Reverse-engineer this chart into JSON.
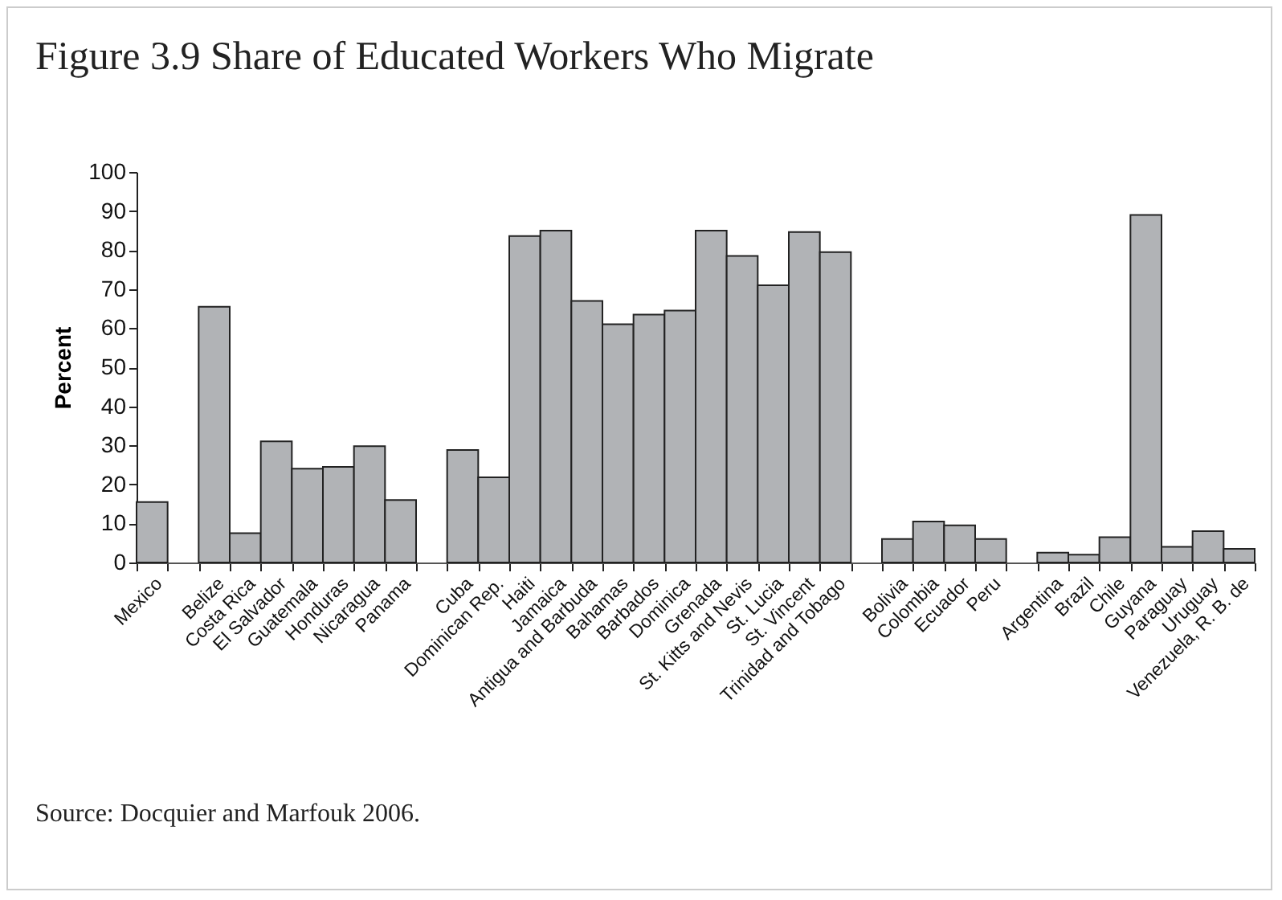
{
  "chart_data": {
    "type": "bar",
    "title": "Figure 3.9 Share of Educated Workers Who Migrate",
    "ylabel": "Percent",
    "categories": [
      "Mexico",
      null,
      "Belize",
      "Costa Rica",
      "El Salvador",
      "Guatemala",
      "Honduras",
      "Nicaragua",
      "Panama",
      null,
      "Cuba",
      "Dominican Rep.",
      "Haiti",
      "Jamaica",
      "Antigua and Barbuda",
      "Bahamas",
      "Barbados",
      "Dominica",
      "Grenada",
      "St. Kitts and Nevis",
      "St. Lucia",
      "St. Vincent",
      "Trinidad and Tobago",
      null,
      "Bolivia",
      "Colombia",
      "Ecuador",
      "Peru",
      null,
      "Argentina",
      "Brazil",
      "Chile",
      "Guyana",
      "Paraguay",
      "Uruguay",
      "Venezuela, R. B. de"
    ],
    "values": [
      15.5,
      null,
      65.5,
      7.5,
      31,
      24,
      24.5,
      29.8,
      16,
      null,
      28.8,
      21.8,
      83.6,
      85,
      67,
      61,
      63.5,
      64.5,
      85,
      78.5,
      71,
      84.6,
      79.5,
      null,
      6,
      10.5,
      9.5,
      6,
      null,
      2.5,
      2,
      6.5,
      89,
      4,
      8,
      3.5
    ],
    "color": "#b1b3b6",
    "ylim": [
      0,
      100
    ],
    "yticks": [
      0,
      10,
      20,
      30,
      40,
      50,
      60,
      70,
      80,
      90,
      100
    ],
    "grid": false,
    "annotations": [
      "Source: Docquier and Marfouk 2006."
    ]
  }
}
